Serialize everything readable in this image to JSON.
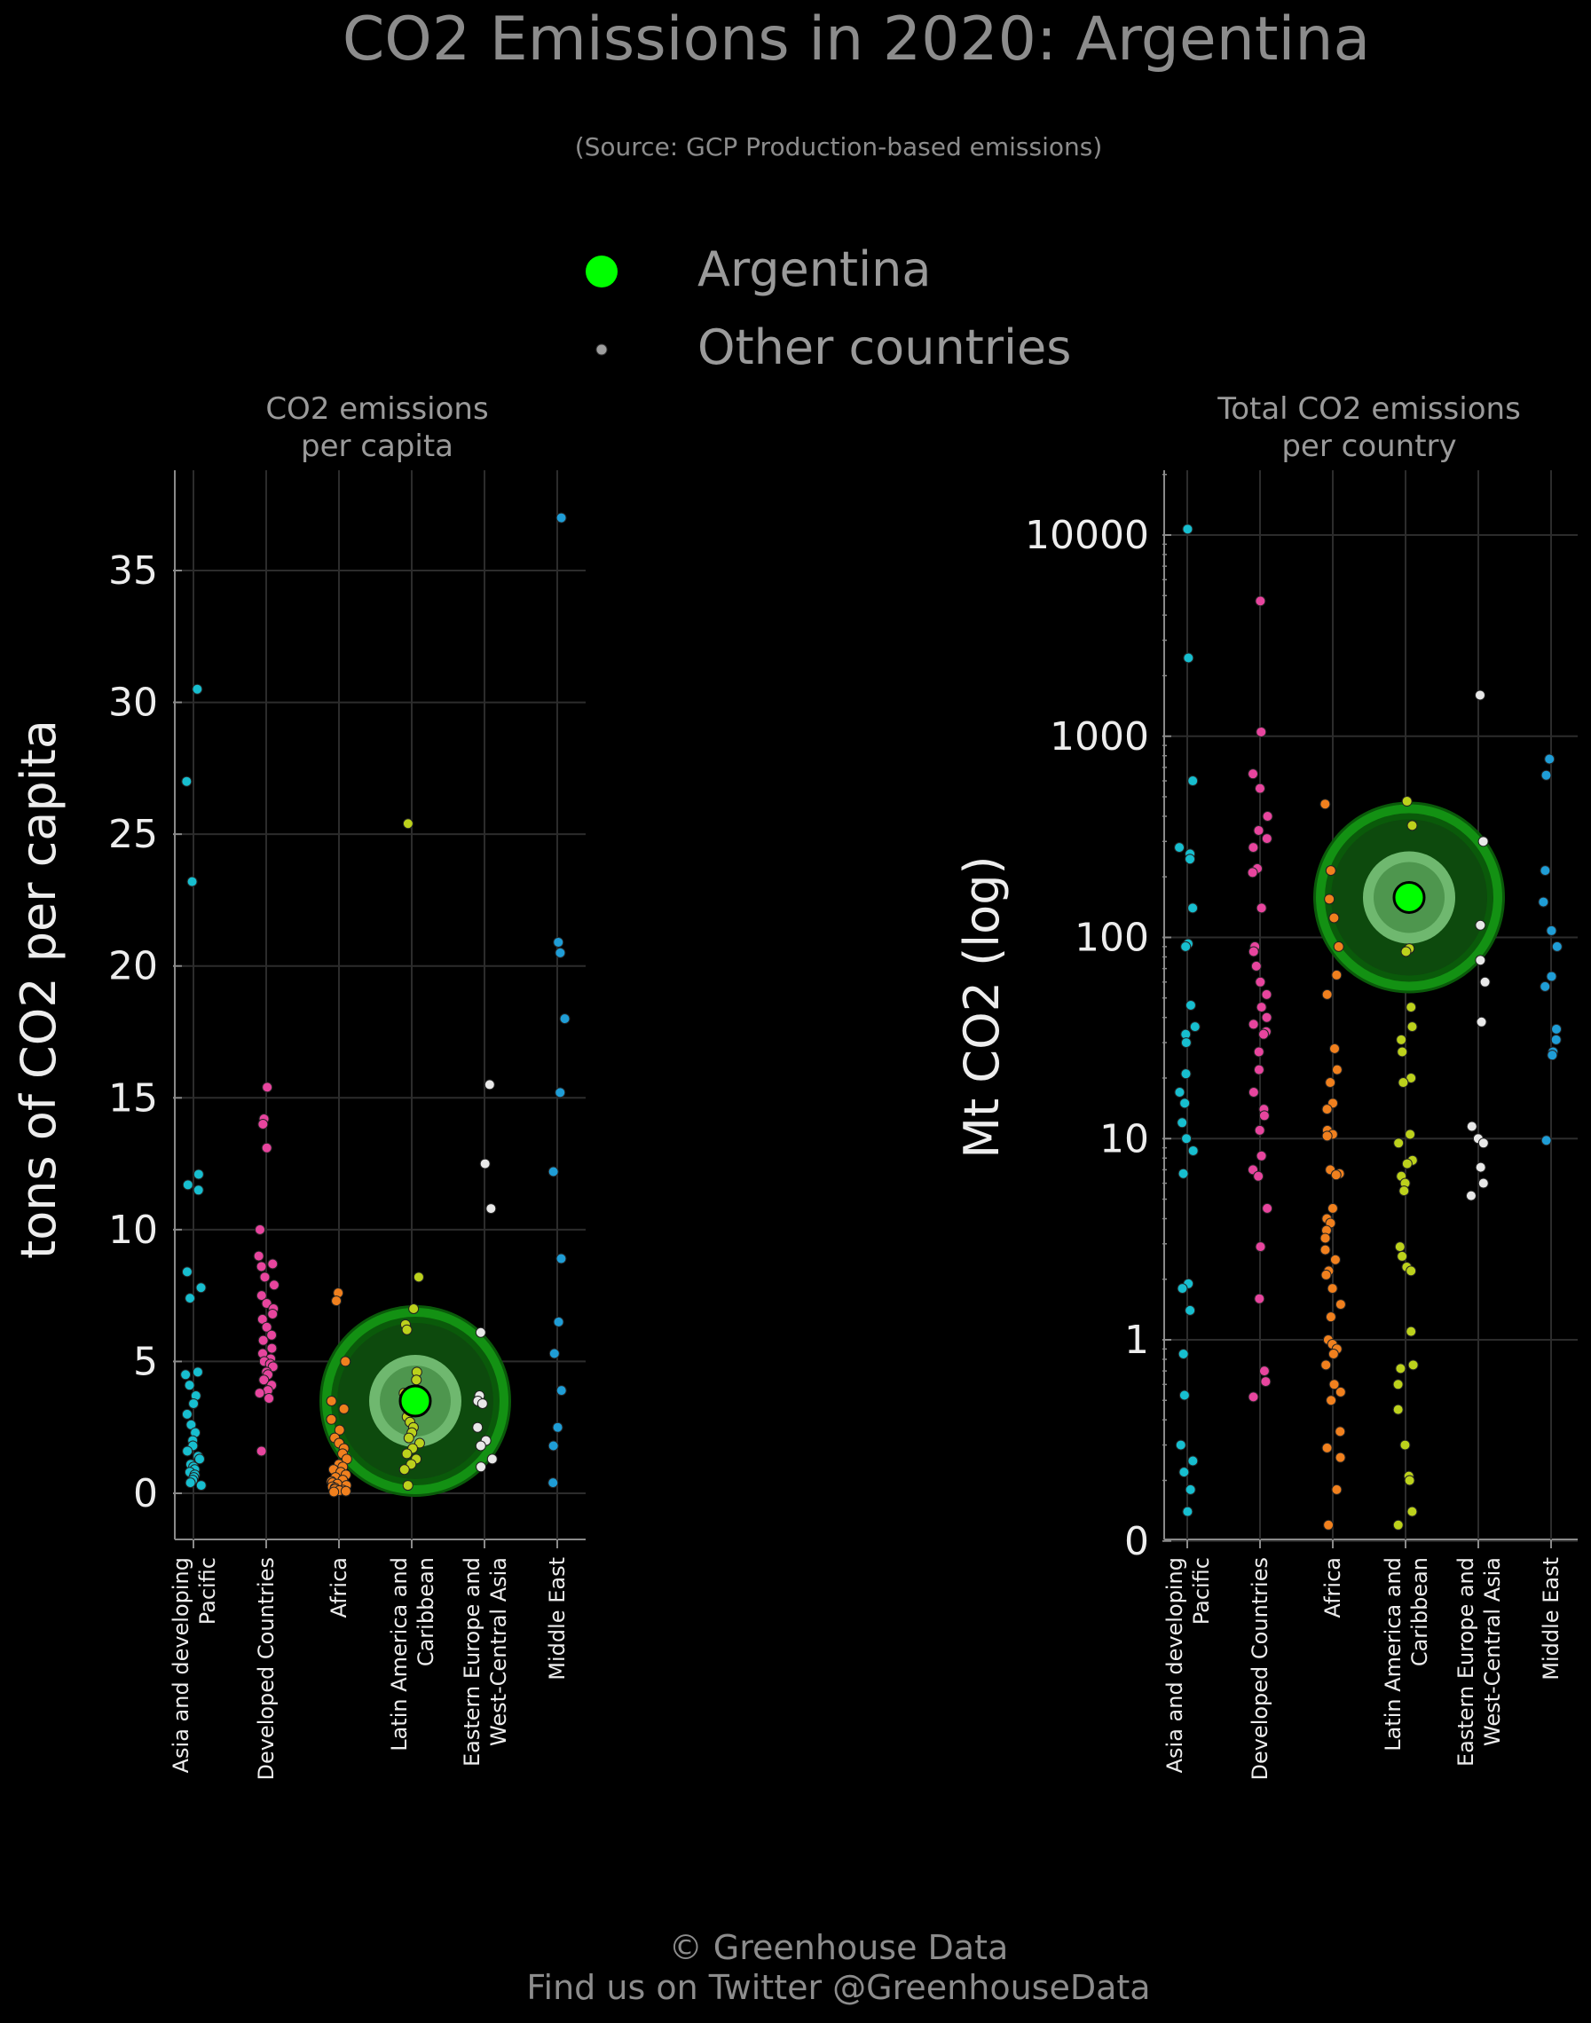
{
  "title": "CO2 Emissions in 2020: Argentina",
  "subtitle": "(Source: GCP Production-based emissions)",
  "legend": {
    "highlight_label": "Argentina",
    "other_label": "Other countries",
    "highlight_color": "#00ff00",
    "other_color": "#9e9e9e"
  },
  "footer": {
    "line1": "© Greenhouse Data",
    "line2": "Find us on Twitter @GreenhouseData"
  },
  "colors": {
    "Asia and developing Pacific": "#17becf",
    "Developed Countries": "#e7459e",
    "Africa": "#f0801e",
    "Latin America and Caribbean": "#bcd11c",
    "Eastern Europe and West-Central Asia": "#e8e8e8",
    "Middle East": "#1f9dd6"
  },
  "chart_data": [
    {
      "type": "scatter",
      "title": "CO2 emissions per capita",
      "ylabel": "tons of CO2 per capita",
      "ylim": [
        -1.8,
        39
      ],
      "yscale": "linear",
      "yticks": [
        "0",
        "5",
        "10",
        "15",
        "20",
        "25",
        "30",
        "35"
      ],
      "categories": [
        "Asia and developing Pacific",
        "Developed Countries",
        "Africa",
        "Latin America and Caribbean",
        "Eastern Europe and West-Central Asia",
        "Middle East"
      ],
      "highlight": {
        "name": "Argentina",
        "category": "Latin America and Caribbean",
        "value": 3.5
      },
      "series": [
        {
          "category": "Asia and developing Pacific",
          "values": [
            30.5,
            27.0,
            23.2,
            12.1,
            11.7,
            11.5,
            8.4,
            7.8,
            7.4,
            4.6,
            4.5,
            4.1,
            3.7,
            3.4,
            3.0,
            2.6,
            2.3,
            2.0,
            1.8,
            1.6,
            1.4,
            1.3,
            1.1,
            1.0,
            0.9,
            0.8,
            0.7,
            0.6,
            0.5,
            0.4,
            0.3
          ]
        },
        {
          "category": "Developed Countries",
          "values": [
            15.4,
            14.2,
            14.0,
            13.1,
            10.0,
            9.0,
            8.7,
            8.6,
            8.2,
            7.9,
            7.5,
            7.2,
            7.0,
            6.8,
            6.6,
            6.3,
            6.0,
            5.8,
            5.5,
            5.3,
            5.1,
            5.0,
            4.9,
            4.8,
            4.6,
            4.5,
            4.3,
            4.1,
            3.9,
            3.8,
            3.6,
            1.6
          ]
        },
        {
          "category": "Africa",
          "values": [
            7.6,
            7.3,
            5.0,
            3.5,
            3.2,
            2.8,
            2.4,
            2.1,
            1.9,
            1.7,
            1.5,
            1.3,
            1.1,
            1.0,
            0.9,
            0.8,
            0.7,
            0.6,
            0.5,
            0.45,
            0.4,
            0.35,
            0.3,
            0.25,
            0.2,
            0.15,
            0.12,
            0.1,
            0.08,
            0.05
          ]
        },
        {
          "category": "Latin America and Caribbean",
          "values": [
            25.4,
            8.2,
            7.0,
            6.4,
            6.2,
            4.6,
            4.3,
            3.8,
            3.5,
            3.3,
            3.1,
            2.9,
            2.7,
            2.5,
            2.3,
            2.1,
            1.9,
            1.7,
            1.5,
            1.3,
            1.1,
            0.9,
            0.3
          ]
        },
        {
          "category": "Eastern Europe and West-Central Asia",
          "values": [
            15.5,
            12.5,
            10.8,
            6.1,
            3.7,
            3.5,
            3.4,
            2.5,
            2.0,
            1.8,
            1.3,
            1.0
          ]
        },
        {
          "category": "Middle East",
          "values": [
            37.0,
            20.9,
            20.5,
            18.0,
            15.2,
            12.2,
            8.9,
            6.5,
            5.3,
            3.9,
            2.5,
            1.8,
            0.4
          ]
        }
      ]
    },
    {
      "type": "scatter",
      "title": "Total CO2 emissions per country",
      "ylabel": "Mt CO2 (log)",
      "yscale": "log",
      "ylim_log10": [
        -1,
        4.3
      ],
      "yticks": [
        "0",
        "1",
        "10",
        "100",
        "1000",
        "10000"
      ],
      "categories": [
        "Asia and developing Pacific",
        "Developed Countries",
        "Africa",
        "Latin America and Caribbean",
        "Eastern Europe and West-Central Asia",
        "Middle East"
      ],
      "highlight": {
        "name": "Argentina",
        "category": "Latin America and Caribbean",
        "value": 158
      },
      "series": [
        {
          "category": "Asia and developing Pacific",
          "values": [
            10700,
            2450,
            600,
            280,
            260,
            245,
            140,
            93,
            90,
            46,
            36,
            33,
            30,
            21,
            17,
            15,
            12,
            10,
            8.7,
            6.7,
            1.9,
            1.8,
            1.4,
            0.85,
            0.53,
            0.3,
            0.25,
            0.22,
            0.18,
            0.14
          ]
        },
        {
          "category": "Developed Countries",
          "values": [
            4700,
            1050,
            650,
            550,
            400,
            340,
            310,
            280,
            220,
            210,
            140,
            90,
            85,
            72,
            60,
            52,
            45,
            40,
            37,
            34,
            33,
            27,
            22,
            17,
            14,
            13,
            11,
            8.2,
            7,
            6.5,
            4.5,
            2.9,
            1.6,
            0.7,
            0.62,
            0.52
          ]
        },
        {
          "category": "Africa",
          "values": [
            460,
            215,
            155,
            125,
            90,
            65,
            52,
            28,
            22,
            19,
            15,
            14,
            11,
            10.5,
            10.3,
            7,
            6.7,
            6.6,
            4.5,
            4.0,
            3.8,
            3.5,
            3.2,
            2.8,
            2.5,
            2.2,
            2.1,
            1.8,
            1.5,
            1.3,
            1.0,
            0.95,
            0.9,
            0.85,
            0.75,
            0.6,
            0.55,
            0.5,
            0.35,
            0.29,
            0.26,
            0.18,
            0.12
          ]
        },
        {
          "category": "Latin America and Caribbean",
          "values": [
            475,
            360,
            158,
            88,
            85,
            45,
            36,
            31,
            27,
            20,
            19,
            10.5,
            9.5,
            7.8,
            7.5,
            6.5,
            6,
            5.5,
            2.9,
            2.6,
            2.3,
            2.2,
            1.1,
            0.75,
            0.72,
            0.6,
            0.45,
            0.3,
            0.21,
            0.2,
            0.14,
            0.12
          ]
        },
        {
          "category": "Eastern Europe and West-Central Asia",
          "values": [
            1600,
            300,
            115,
            77,
            60,
            38,
            11.5,
            10,
            9.5,
            7.2,
            6,
            5.2
          ]
        },
        {
          "category": "Middle East",
          "values": [
            770,
            640,
            215,
            150,
            108,
            90,
            64,
            57,
            35,
            31,
            27,
            26,
            9.8
          ]
        }
      ]
    }
  ]
}
